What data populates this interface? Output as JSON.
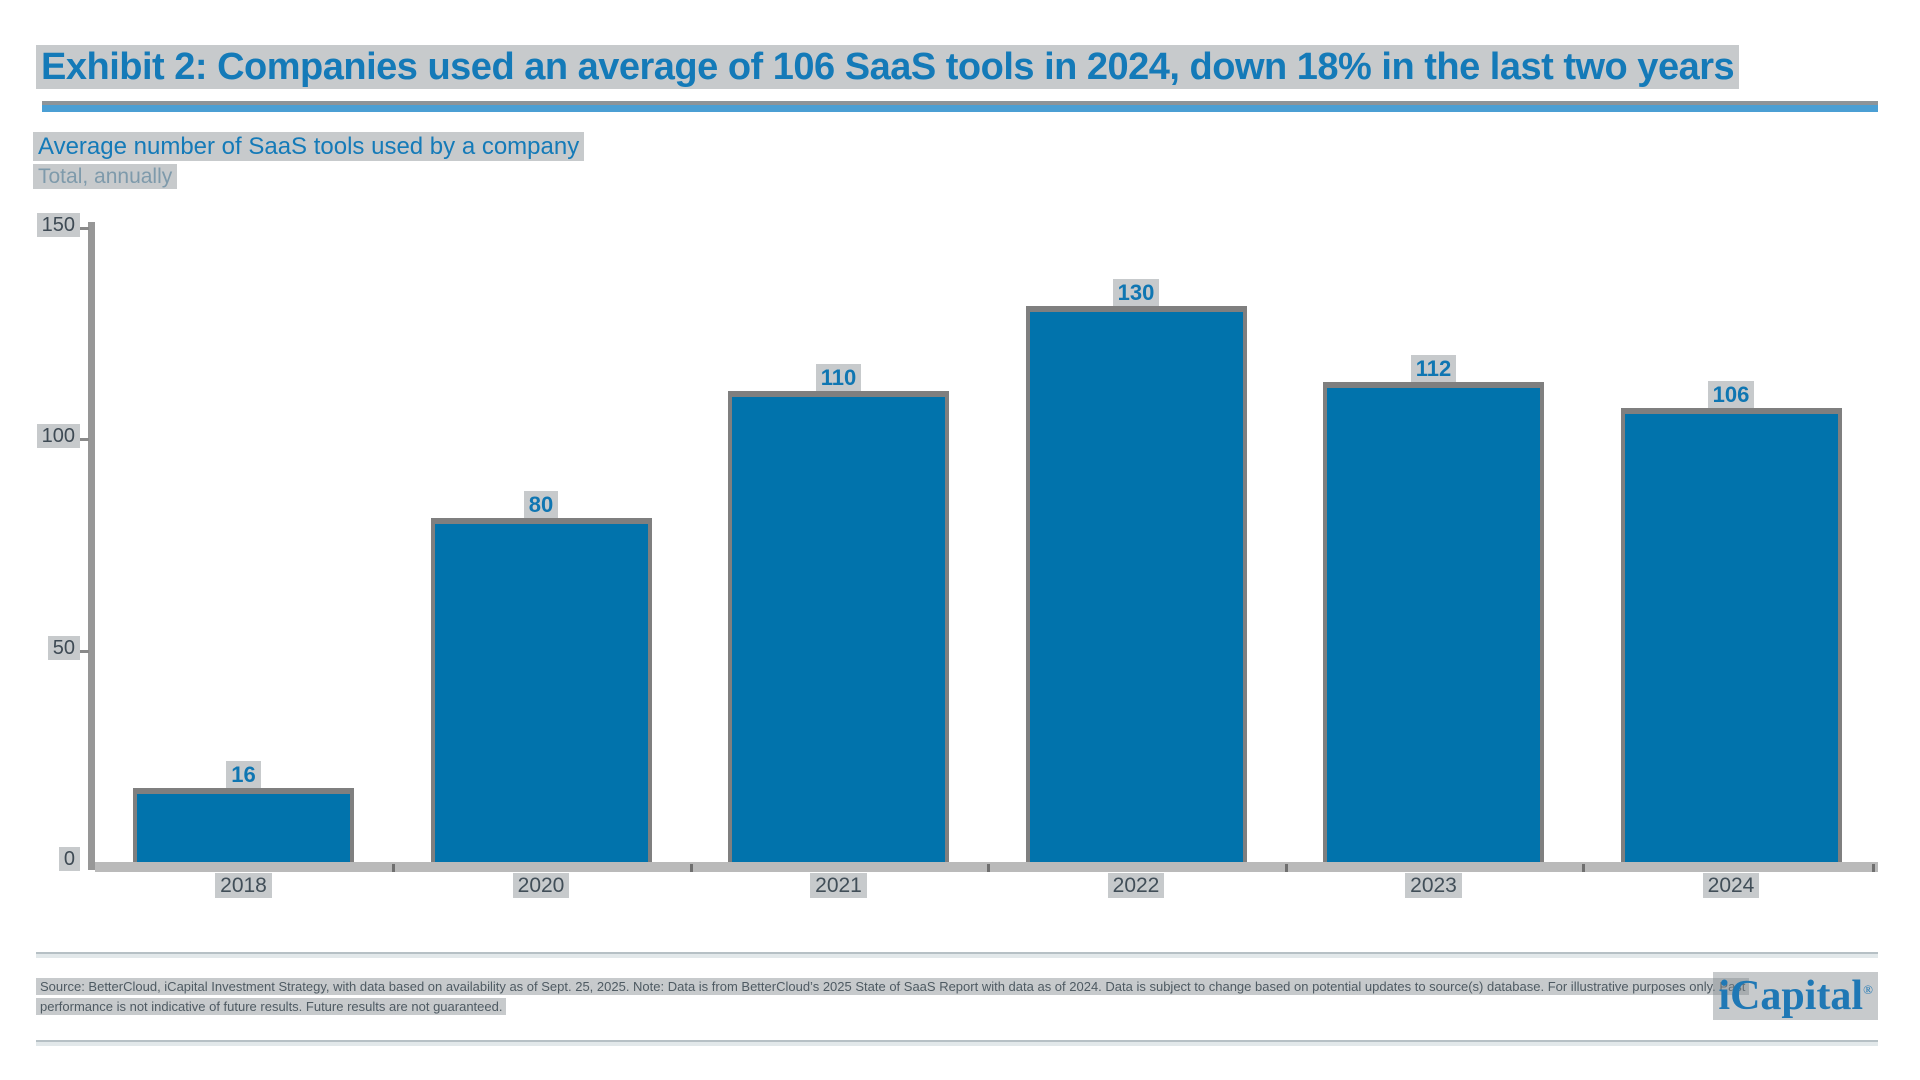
{
  "header": {
    "title": "Exhibit 2: Companies used an average of 106 SaaS tools in 2024, down 18% in the last two years",
    "subtitle": "Average number of SaaS tools used by a company",
    "unit_note": "Total, annually"
  },
  "chart_data": {
    "type": "bar",
    "categories": [
      "2018",
      "2020",
      "2021",
      "2022",
      "2023",
      "2024"
    ],
    "values": [
      16,
      80,
      110,
      130,
      112,
      106
    ],
    "title": "Average number of SaaS tools used by a company",
    "subtitle": "Total, annually",
    "xlabel": "",
    "ylabel": "",
    "ylim": [
      0,
      150
    ],
    "yticks": [
      0,
      50,
      100,
      150
    ],
    "value_labels_shown": true,
    "grid": false,
    "legend": false,
    "bar_color": "#0173AC"
  },
  "footnote": {
    "line1": "Source: BetterCloud, iCapital Investment Strategy, with data based on availability as of Sept. 25, 2025. Note: Data is from BetterCloud’s 2025 State of SaaS Report with data as of 2024. Data is subject to change based on potential updates to source(s) database. For illustrative purposes only. Past",
    "line2": "performance is not indicative of future results. Future results are not guaranteed."
  },
  "logo": {
    "wordmark": "iCapital",
    "registered_mark": "®"
  },
  "colors": {
    "title_blue": "#147AB8",
    "bar_blue": "#0173AC",
    "underline_blue": "#4B9FD4",
    "axis_gray": "#979797",
    "tick_text": "#3E4A54",
    "footnote_text": "#4E5A62"
  }
}
